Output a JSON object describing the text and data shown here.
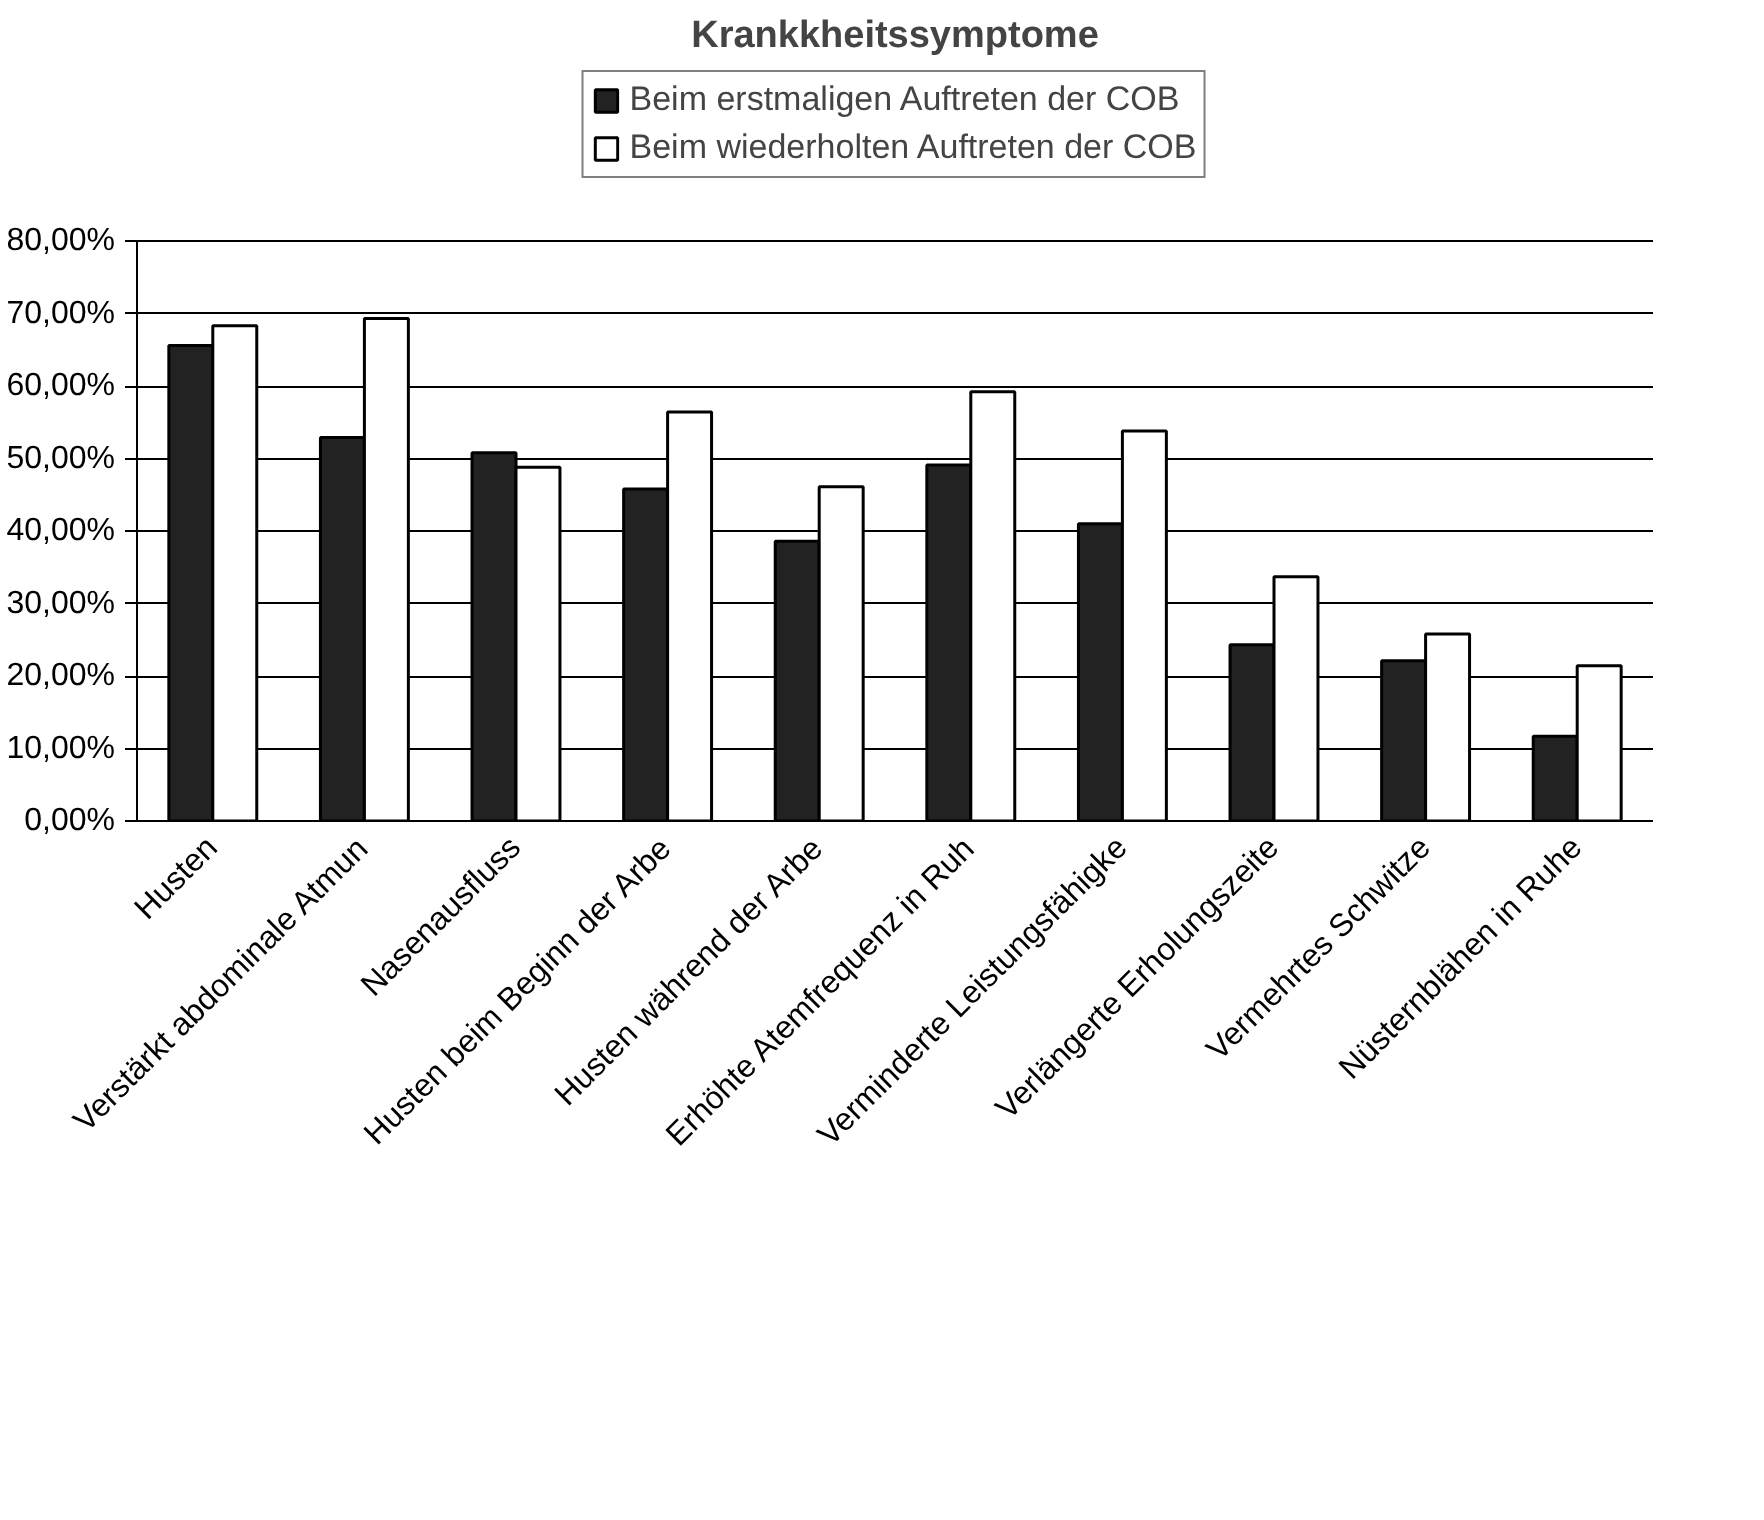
{
  "chart_data": {
    "type": "bar",
    "title": "Krankkheitssymptome",
    "categories": [
      "Husten",
      "Verstärkt abdominale Atmun",
      "Nasenausfluss",
      "Husten beim Beginn der Arbe",
      "Husten während der Arbe",
      "Erhöhte Atemfrequenz in Ruh",
      "Verminderte Leistungsfähigke",
      "Verlängerte Erholungszeite",
      "Vermehrtes Schwitze",
      "Nüsternblähen in Ruhe"
    ],
    "series": [
      {
        "name": "Beim erstmaligen Auftreten der COB",
        "color": "#222222",
        "values": [
          65.6,
          52.9,
          50.8,
          45.8,
          38.6,
          49.1,
          41.0,
          24.3,
          22.1,
          11.7
        ]
      },
      {
        "name": "Beim wiederholten Auftreten der COB",
        "color": "#ffffff",
        "values": [
          68.3,
          69.3,
          48.8,
          56.4,
          46.1,
          59.2,
          53.8,
          33.7,
          25.8,
          21.4
        ]
      }
    ],
    "ylim": [
      0,
      80
    ],
    "yticks": [
      {
        "value": 0,
        "label": "0,00%"
      },
      {
        "value": 10,
        "label": "10,00%"
      },
      {
        "value": 20,
        "label": "20,00%"
      },
      {
        "value": 30,
        "label": "30,00%"
      },
      {
        "value": 40,
        "label": "40,00%"
      },
      {
        "value": 50,
        "label": "50,00%"
      },
      {
        "value": 60,
        "label": "60,00%"
      },
      {
        "value": 70,
        "label": "70,00%"
      },
      {
        "value": 80,
        "label": "80,00%"
      }
    ],
    "grid": "y",
    "legend": "top"
  }
}
